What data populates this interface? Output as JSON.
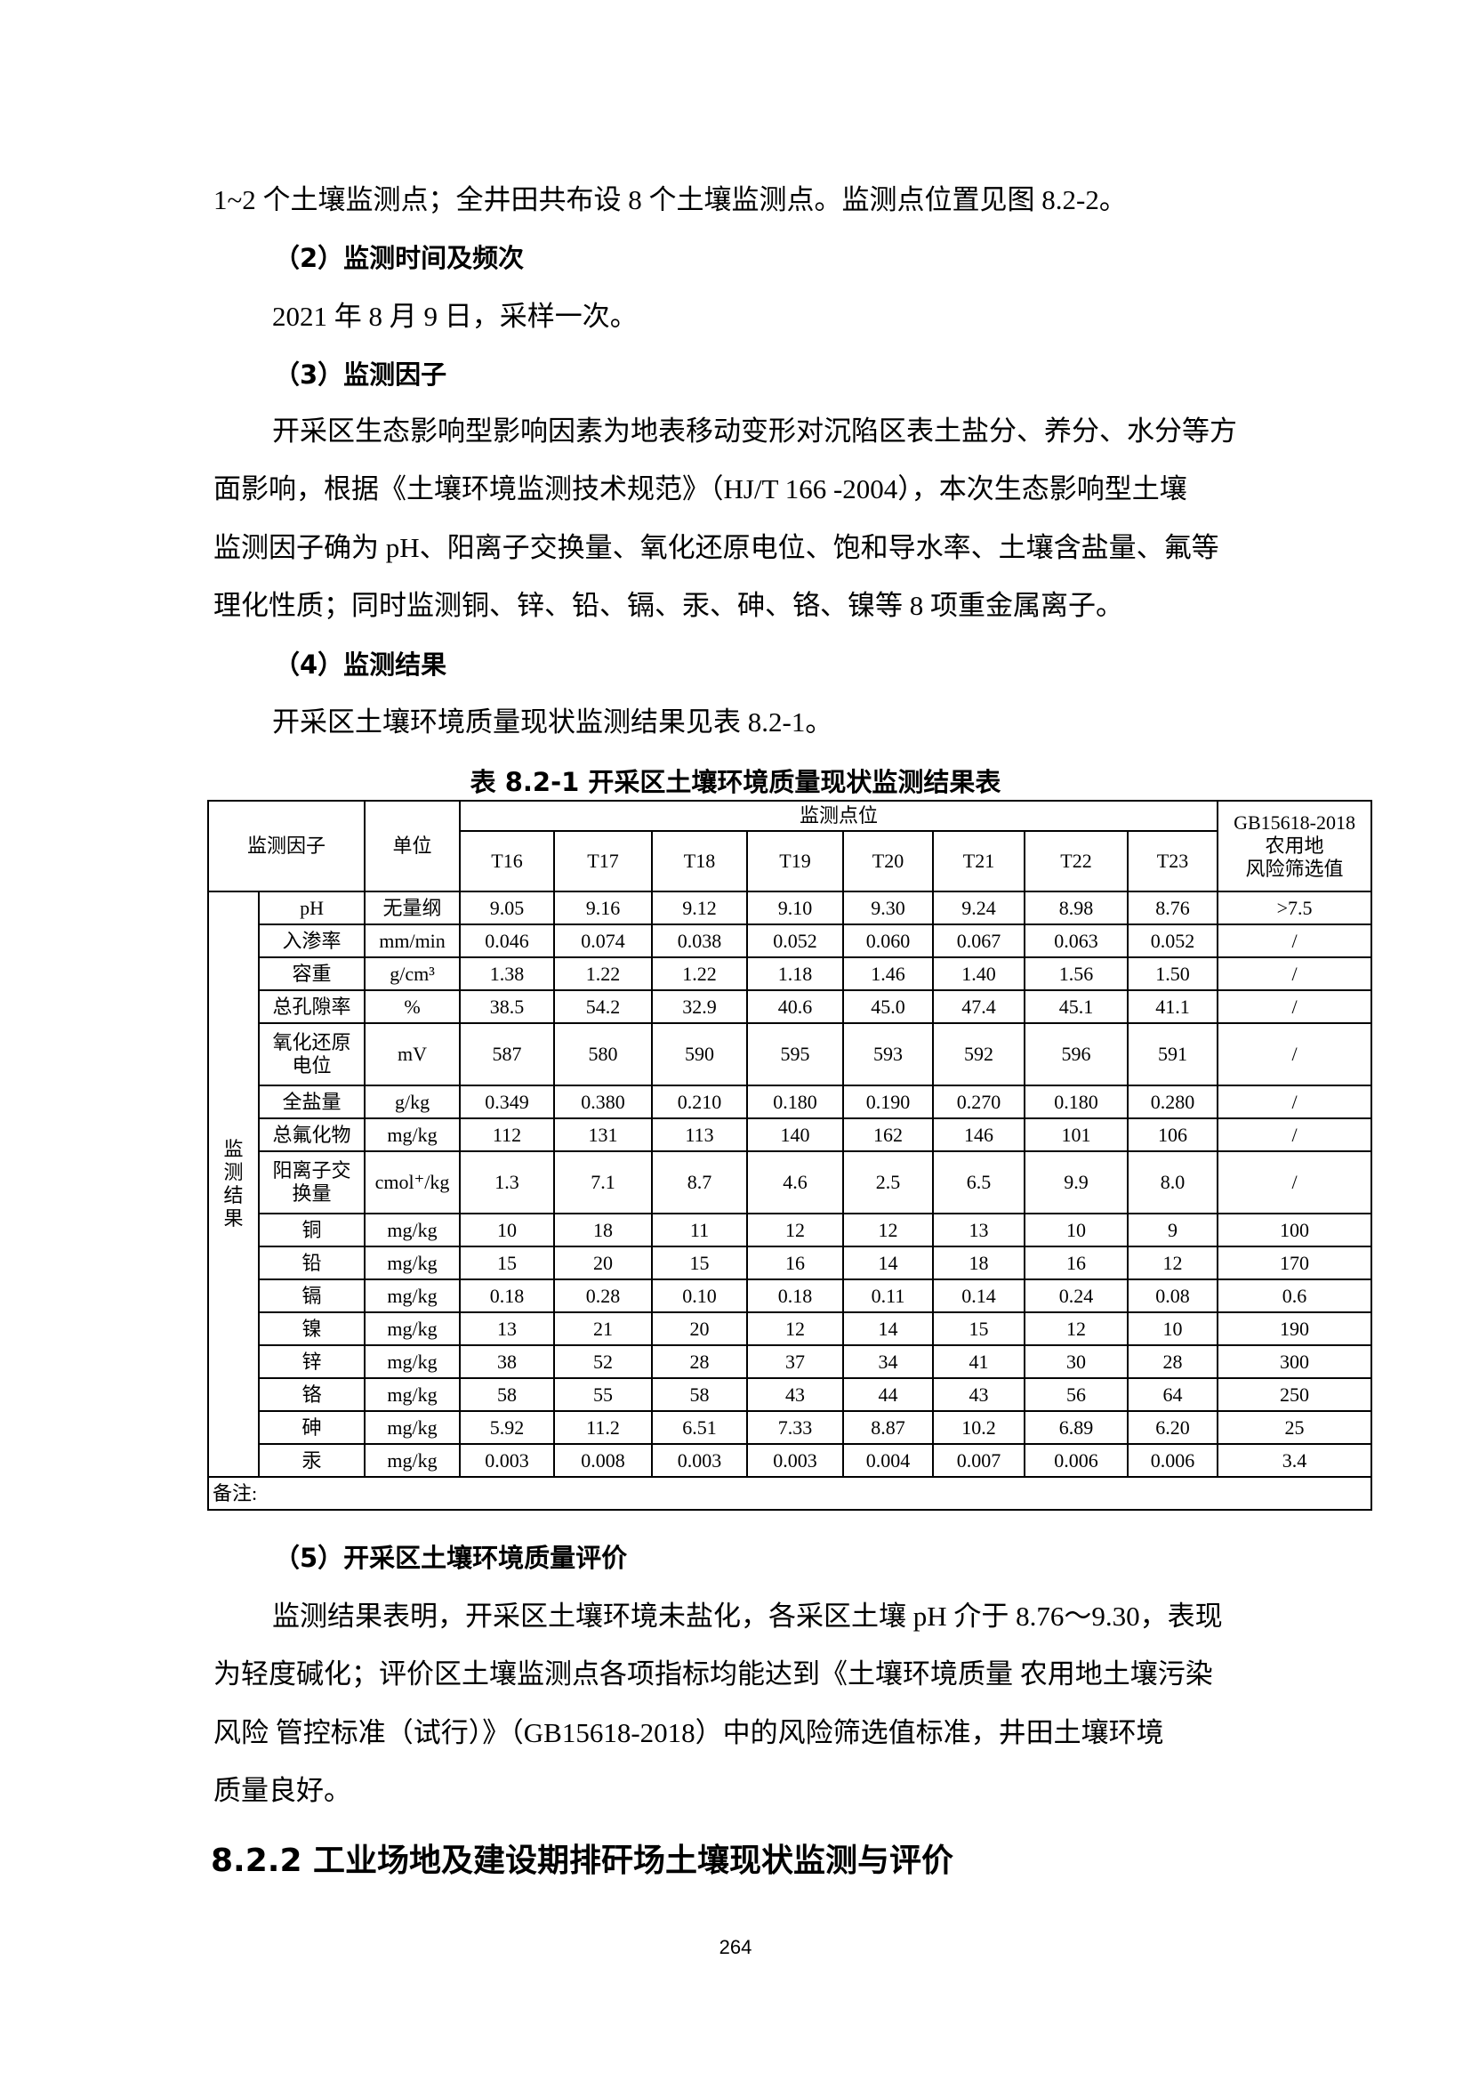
{
  "paragraphs_top": [
    "1~2 个土壤监测点；全井田共布设 8 个土壤监测点。监测点位置见图 8.2-2。",
    "（2）监测时间及频次",
    "2021 年 8 月 9 日，采样一次。",
    "（3）监测因子",
    "开采区生态影响型影响因素为地表移动变形对沉陷区表土盐分、养分、水分等方",
    "面影响，根据《土壤环境监测技术规范》（HJ/T 166 -2004），本次生态影响型土壤",
    "监测因子确为 pH、阳离子交换量、氧化还原电位、饱和导水率、土壤含盐量、氟等",
    "理化性质；同时监测铜、锌、铅、镉、汞、砷、铬、镍等 8 项重金属离子。",
    "（4）监测结果",
    "开采区土壤环境质量现状监测结果见表  8.2-1。"
  ],
  "table": {
    "title": "表 8.2-1  开采区土壤环境质量现状监测结果表",
    "h_factor": "监测因子",
    "h_unit": "单位",
    "h_points": "监测点位",
    "h_standard": [
      "GB15618-2018",
      "农用地",
      "风险筛选值"
    ],
    "points": [
      "T16",
      "T17",
      "T18",
      "T19",
      "T20",
      "T21",
      "T22",
      "T23"
    ],
    "group_label": "监测结果",
    "rows": [
      {
        "factor": "pH",
        "unit": "无量纲",
        "values": [
          "9.05",
          "9.16",
          "9.12",
          "9.10",
          "9.30",
          "9.24",
          "8.98",
          "8.76"
        ],
        "standard": ">7.5"
      },
      {
        "factor": "入渗率",
        "unit": "mm/min",
        "values": [
          "0.046",
          "0.074",
          "0.038",
          "0.052",
          "0.060",
          "0.067",
          "0.063",
          "0.052"
        ],
        "standard": "/"
      },
      {
        "factor": "容重",
        "unit": "g/cm³",
        "values": [
          "1.38",
          "1.22",
          "1.22",
          "1.18",
          "1.46",
          "1.40",
          "1.56",
          "1.50"
        ],
        "standard": "/"
      },
      {
        "factor": "总孔隙率",
        "unit": "%",
        "values": [
          "38.5",
          "54.2",
          "32.9",
          "40.6",
          "45.0",
          "47.4",
          "45.1",
          "41.1"
        ],
        "standard": "/"
      },
      {
        "factor": "氧化还原电位",
        "unit": "mV",
        "values": [
          "587",
          "580",
          "590",
          "595",
          "593",
          "592",
          "596",
          "591"
        ],
        "standard": "/",
        "double": true
      },
      {
        "factor": "全盐量",
        "unit": "g/kg",
        "values": [
          "0.349",
          "0.380",
          "0.210",
          "0.180",
          "0.190",
          "0.270",
          "0.180",
          "0.280"
        ],
        "standard": "/"
      },
      {
        "factor": "总氟化物",
        "unit": "mg/kg",
        "values": [
          "112",
          "131",
          "113",
          "140",
          "162",
          "146",
          "101",
          "106"
        ],
        "standard": "/"
      },
      {
        "factor": "阳离子交换量",
        "unit": "cmol⁺/kg",
        "values": [
          "1.3",
          "7.1",
          "8.7",
          "4.6",
          "2.5",
          "6.5",
          "9.9",
          "8.0"
        ],
        "standard": "/",
        "double": true
      },
      {
        "factor": "铜",
        "unit": "mg/kg",
        "values": [
          "10",
          "18",
          "11",
          "12",
          "12",
          "13",
          "10",
          "9"
        ],
        "standard": "100"
      },
      {
        "factor": "铅",
        "unit": "mg/kg",
        "values": [
          "15",
          "20",
          "15",
          "16",
          "14",
          "18",
          "16",
          "12"
        ],
        "standard": "170"
      },
      {
        "factor": "镉",
        "unit": "mg/kg",
        "values": [
          "0.18",
          "0.28",
          "0.10",
          "0.18",
          "0.11",
          "0.14",
          "0.24",
          "0.08"
        ],
        "standard": "0.6"
      },
      {
        "factor": "镍",
        "unit": "mg/kg",
        "values": [
          "13",
          "21",
          "20",
          "12",
          "14",
          "15",
          "12",
          "10"
        ],
        "standard": "190"
      },
      {
        "factor": "锌",
        "unit": "mg/kg",
        "values": [
          "38",
          "52",
          "28",
          "37",
          "34",
          "41",
          "30",
          "28"
        ],
        "standard": "300"
      },
      {
        "factor": "铬",
        "unit": "mg/kg",
        "values": [
          "58",
          "55",
          "58",
          "43",
          "44",
          "43",
          "56",
          "64"
        ],
        "standard": "250"
      },
      {
        "factor": "砷",
        "unit": "mg/kg",
        "values": [
          "5.92",
          "11.2",
          "6.51",
          "7.33",
          "8.87",
          "10.2",
          "6.89",
          "6.20"
        ],
        "standard": "25"
      },
      {
        "factor": "汞",
        "unit": "mg/kg",
        "values": [
          "0.003",
          "0.008",
          "0.003",
          "0.003",
          "0.004",
          "0.007",
          "0.006",
          "0.006"
        ],
        "standard": "3.4"
      }
    ],
    "remark": "备注:"
  },
  "paragraphs_bottom": [
    "（5）开采区土壤环境质量评价",
    "监测结果表明，开采区土壤环境未盐化，各采区土壤 pH 介于 8.76～9.30，表现",
    "为轻度碱化；评价区土壤监测点各项指标均能达到《土壤环境质量  农用地土壤污染",
    "风险  管控标准（试行）》（GB15618-2018）中的风险筛选值标准，井田土壤环境",
    "质量良好。"
  ],
  "section_heading": "8.2.2  工业场地及建设期排矸场土壤现状监测与评价",
  "page_number": "264"
}
